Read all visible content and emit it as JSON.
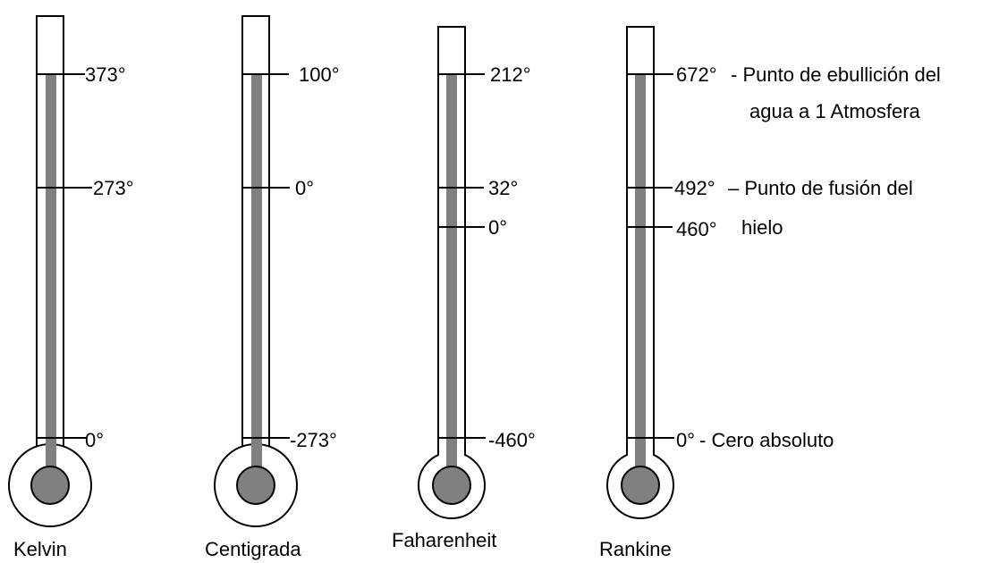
{
  "thermometers": [
    {
      "name": "Kelvin",
      "ticks": [
        {
          "label": "373°",
          "level": "boiling"
        },
        {
          "label": "273°",
          "level": "freezing"
        },
        {
          "label": "0°",
          "level": "absolute_zero"
        }
      ]
    },
    {
      "name": "Centigrada",
      "ticks": [
        {
          "label": "100°",
          "level": "boiling"
        },
        {
          "label": "0°",
          "level": "freezing"
        },
        {
          "label": "-273°",
          "level": "absolute_zero"
        }
      ]
    },
    {
      "name": "Faharenheit",
      "ticks": [
        {
          "label": "212°",
          "level": "boiling"
        },
        {
          "label": "32°",
          "level": "freezing"
        },
        {
          "label": "0°",
          "level": "fahrenheit_zero"
        },
        {
          "label": "-460°",
          "level": "absolute_zero"
        }
      ]
    },
    {
      "name": "Rankine",
      "ticks": [
        {
          "label": "672°",
          "level": "boiling"
        },
        {
          "label": "492°",
          "level": "freezing"
        },
        {
          "label": "460°",
          "level": "fahrenheit_zero"
        },
        {
          "label": "0°",
          "level": "absolute_zero"
        }
      ]
    }
  ],
  "annotations": {
    "boiling_line1": "- Punto de ebullición del",
    "boiling_line2": "agua a 1 Atmosfera",
    "freezing_line1": "– Punto de fusión del",
    "freezing_line2": "hielo",
    "absolute_zero": "- Cero absoluto"
  },
  "colors": {
    "mercury": "#808080",
    "outline": "#000000",
    "background": "#ffffff"
  }
}
